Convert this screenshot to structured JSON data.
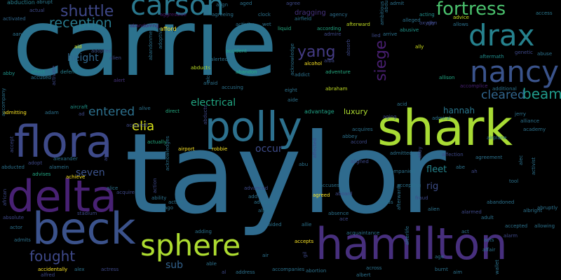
{
  "words": [
    {
      "text": "carrie",
      "color": "#2c728e"
    },
    {
      "text": "taylor",
      "color": "#2f6b8e"
    },
    {
      "text": "shark",
      "color": "#a8db34"
    },
    {
      "text": "hamilton",
      "color": "#472f7d"
    },
    {
      "text": "polly",
      "color": "#2d718e"
    },
    {
      "text": "flora",
      "color": "#3e4a89"
    },
    {
      "text": "delta",
      "color": "#482173"
    },
    {
      "text": "beck",
      "color": "#3b528b"
    },
    {
      "text": "sphere",
      "color": "#addc30"
    },
    {
      "text": "drax",
      "color": "#26828e"
    },
    {
      "text": "nancy",
      "color": "#3a538b"
    },
    {
      "text": "carson",
      "color": "#2a788e"
    },
    {
      "text": "fortress",
      "color": "#4ac16d"
    },
    {
      "text": "shuttle",
      "color": "#3f4889"
    },
    {
      "text": "reception",
      "color": "#297b8e"
    },
    {
      "text": "yang",
      "color": "#443b84"
    },
    {
      "text": "siege",
      "color": "#481f70"
    },
    {
      "text": "beam",
      "color": "#1f9a8a"
    },
    {
      "text": "cleared",
      "color": "#31668e"
    },
    {
      "text": "fought",
      "color": "#3e4989"
    },
    {
      "text": "elia",
      "color": "#d8e219"
    },
    {
      "text": "entered",
      "color": "#2d718e"
    },
    {
      "text": "electrical",
      "color": "#22a884"
    },
    {
      "text": "height",
      "color": "#31688e"
    },
    {
      "text": "seven",
      "color": "#3b528b"
    },
    {
      "text": "occur",
      "color": "#3e4c8a"
    },
    {
      "text": "hannah",
      "color": "#2a778e"
    },
    {
      "text": "sub",
      "color": "#33628d"
    },
    {
      "text": "fleet",
      "color": "#25858e"
    },
    {
      "text": "rig",
      "color": "#3d4e8a"
    },
    {
      "text": "luxury",
      "color": "#addc30"
    },
    {
      "text": "advantage",
      "color": "#20a386"
    },
    {
      "text": "dragging",
      "color": "#46327e"
    },
    {
      "text": "abduction",
      "color": "#277f8e"
    },
    {
      "text": "abandoning",
      "color": "#481f70"
    },
    {
      "text": "activated",
      "color": "#31688e"
    },
    {
      "text": "aggressive",
      "color": "#481668"
    },
    {
      "text": "afford",
      "color": "#fde725"
    },
    {
      "text": "airfield",
      "color": "#2c728e"
    },
    {
      "text": "liquid",
      "color": "#25ac82"
    },
    {
      "text": "abrupt",
      "color": "#2a788e"
    },
    {
      "text": "according",
      "color": "#22a884"
    },
    {
      "text": "agency",
      "color": "#2e6f8e"
    },
    {
      "text": "afterward",
      "color": "#c2df23"
    },
    {
      "text": "abusive",
      "color": "#1f958b"
    },
    {
      "text": "allows",
      "color": "#2c728e"
    },
    {
      "text": "acting",
      "color": "#21908d"
    },
    {
      "text": "advice",
      "color": "#c5e021"
    },
    {
      "text": "access",
      "color": "#2a788e"
    },
    {
      "text": "ally",
      "color": "#d0e11c"
    },
    {
      "text": "abuse",
      "color": "#2c728e"
    },
    {
      "text": "aftermath",
      "color": "#218e8d"
    },
    {
      "text": "allison",
      "color": "#22a884"
    },
    {
      "text": "accomplice",
      "color": "#482173"
    },
    {
      "text": "additional",
      "color": "#2c728e"
    },
    {
      "text": "abby",
      "color": "#1f958b"
    },
    {
      "text": "aid",
      "color": "#dde318"
    },
    {
      "text": "adopted",
      "color": "#3b528b"
    },
    {
      "text": "alien",
      "color": "#3e4989"
    },
    {
      "text": "affect",
      "color": "#1f958b"
    },
    {
      "text": "defend",
      "color": "#277f8e"
    },
    {
      "text": "accused",
      "color": "#2c728e"
    },
    {
      "text": "alert",
      "color": "#46327e"
    },
    {
      "text": "abducts",
      "color": "#bddf26"
    },
    {
      "text": "alerted",
      "color": "#2c728e"
    },
    {
      "text": "abandon",
      "color": "#25ac82"
    },
    {
      "text": "accident",
      "color": "#22a884"
    },
    {
      "text": "afraid",
      "color": "#2c728e"
    },
    {
      "text": "accusing",
      "color": "#2c728e"
    },
    {
      "text": "alcohol",
      "color": "#fde725"
    },
    {
      "text": "addict",
      "color": "#2c728e"
    },
    {
      "text": "adventure",
      "color": "#25ac82"
    },
    {
      "text": "abraham",
      "color": "#c2df23"
    },
    {
      "text": "eight",
      "color": "#2c728e"
    },
    {
      "text": "aide",
      "color": "#2c728e"
    },
    {
      "text": "adam",
      "color": "#2c728e"
    },
    {
      "text": "aircraft",
      "color": "#1f958b"
    },
    {
      "text": "alive",
      "color": "#2c728e"
    },
    {
      "text": "direct",
      "color": "#25ac82"
    },
    {
      "text": "admitting",
      "color": "#fde725"
    },
    {
      "text": "ad",
      "color": "#3e4989"
    },
    {
      "text": "accompany",
      "color": "#2c728e"
    },
    {
      "text": "airport",
      "color": "#fde725"
    },
    {
      "text": "robbie",
      "color": "#fde725"
    },
    {
      "text": "actually",
      "color": "#25ac82"
    },
    {
      "text": "alexander",
      "color": "#2c728e"
    },
    {
      "text": "alamein",
      "color": "#2c728e"
    },
    {
      "text": "advises",
      "color": "#22a884"
    },
    {
      "text": "achieve",
      "color": "#fde725"
    },
    {
      "text": "abducted",
      "color": "#2c728e"
    },
    {
      "text": "alice",
      "color": "#2c728e"
    },
    {
      "text": "acquire",
      "color": "#3e4989"
    },
    {
      "text": "ability",
      "color": "#2c728e"
    },
    {
      "text": "active",
      "color": "#2c728e"
    },
    {
      "text": "ago",
      "color": "#2c728e"
    },
    {
      "text": "advanced",
      "color": "#3e4989"
    },
    {
      "text": "add",
      "color": "#2c728e"
    },
    {
      "text": "advance",
      "color": "#2c728e"
    },
    {
      "text": "actor",
      "color": "#2c728e"
    },
    {
      "text": "admits",
      "color": "#2c728e"
    },
    {
      "text": "stadium",
      "color": "#3e4989"
    },
    {
      "text": "accidentally",
      "color": "#fde725"
    },
    {
      "text": "alex",
      "color": "#2c728e"
    },
    {
      "text": "actress",
      "color": "#3e4989"
    },
    {
      "text": "alfred",
      "color": "#3e4989"
    },
    {
      "text": "adding",
      "color": "#2c728e"
    },
    {
      "text": "able",
      "color": "#2c728e"
    },
    {
      "text": "al",
      "color": "#3e4989"
    },
    {
      "text": "address",
      "color": "#2c728e"
    },
    {
      "text": "aided",
      "color": "#2c728e"
    },
    {
      "text": "allie",
      "color": "#2c728e"
    },
    {
      "text": "accepts",
      "color": "#fde725"
    },
    {
      "text": "accompanies",
      "color": "#2c728e"
    },
    {
      "text": "abortion",
      "color": "#2c728e"
    },
    {
      "text": "acquaintance",
      "color": "#2c728e"
    },
    {
      "text": "absence",
      "color": "#2c728e"
    },
    {
      "text": "agreed",
      "color": "#fde725"
    },
    {
      "text": "accuses",
      "color": "#2c728e"
    },
    {
      "text": "aboard",
      "color": "#3e4989"
    },
    {
      "text": "accompanied",
      "color": "#2c728e"
    },
    {
      "text": "admitted",
      "color": "#2c728e"
    },
    {
      "text": "affection",
      "color": "#3e4989"
    },
    {
      "text": "agreement",
      "color": "#2c728e"
    },
    {
      "text": "abe",
      "color": "#2c728e"
    },
    {
      "text": "tool",
      "color": "#2c728e"
    },
    {
      "text": "alien",
      "color": "#2c728e"
    },
    {
      "text": "accepting",
      "color": "#2c728e"
    },
    {
      "text": "jonas",
      "color": "#2c728e"
    },
    {
      "text": "alarmed",
      "color": "#3e4989"
    },
    {
      "text": "abandoned",
      "color": "#2c728e"
    },
    {
      "text": "adult",
      "color": "#2c728e"
    },
    {
      "text": "act",
      "color": "#2c728e"
    },
    {
      "text": "affair",
      "color": "#2c728e"
    },
    {
      "text": "age",
      "color": "#2c728e"
    },
    {
      "text": "aim",
      "color": "#2c728e"
    },
    {
      "text": "burnt",
      "color": "#2c728e"
    },
    {
      "text": "albert",
      "color": "#2c728e"
    },
    {
      "text": "across",
      "color": "#2c728e"
    },
    {
      "text": "abruptly",
      "color": "#2c728e"
    },
    {
      "text": "albright",
      "color": "#2c728e"
    },
    {
      "text": "accepted",
      "color": "#2c728e"
    },
    {
      "text": "allowing",
      "color": "#2c728e"
    },
    {
      "text": "admiral",
      "color": "#2c728e"
    },
    {
      "text": "acid",
      "color": "#2c728e"
    },
    {
      "text": "abbey",
      "color": "#2c728e"
    },
    {
      "text": "accord",
      "color": "#3e4989"
    },
    {
      "text": "acquires",
      "color": "#2c728e"
    },
    {
      "text": "jerry",
      "color": "#2c728e"
    },
    {
      "text": "alliance",
      "color": "#2c728e"
    },
    {
      "text": "academy",
      "color": "#2c728e"
    },
    {
      "text": "airplane",
      "color": "#2c728e"
    },
    {
      "text": "activist",
      "color": "#2c728e"
    },
    {
      "text": "alec",
      "color": "#2c728e"
    },
    {
      "text": "aligned",
      "color": "#3e4989"
    },
    {
      "text": "agreeing",
      "color": "#2c728e"
    },
    {
      "text": "activity",
      "color": "#2c728e"
    },
    {
      "text": "wet",
      "color": "#2c728e"
    },
    {
      "text": "clock",
      "color": "#2c728e"
    },
    {
      "text": "aged",
      "color": "#2c728e"
    },
    {
      "text": "align",
      "color": "#2c728e"
    },
    {
      "text": "admit",
      "color": "#2c728e"
    },
    {
      "text": "aang",
      "color": "#2c728e"
    },
    {
      "text": "admire",
      "color": "#3e4989"
    },
    {
      "text": "abu",
      "color": "#2c728e"
    },
    {
      "text": "abandonment",
      "color": "#2c728e"
    },
    {
      "text": "arrive",
      "color": "#2c728e"
    },
    {
      "text": "ambitious",
      "color": "#2c728e"
    },
    {
      "text": "abducting",
      "color": "#2c728e"
    },
    {
      "text": "affected",
      "color": "#3e4989"
    },
    {
      "text": "alleged",
      "color": "#2c728e"
    },
    {
      "text": "african",
      "color": "#3e4989"
    },
    {
      "text": "accept",
      "color": "#3e4989"
    },
    {
      "text": "adopt",
      "color": "#3e4989"
    },
    {
      "text": "absolute",
      "color": "#3e4989"
    },
    {
      "text": "acquired",
      "color": "#3e4989"
    },
    {
      "text": "actual",
      "color": "#3e4989"
    },
    {
      "text": "allow",
      "color": "#2c728e"
    },
    {
      "text": "air",
      "color": "#2c728e"
    },
    {
      "text": "agent",
      "color": "#3e4989"
    },
    {
      "text": "action",
      "color": "#3e4989"
    },
    {
      "text": "abducts",
      "color": "#3e4989"
    },
    {
      "text": "gil",
      "color": "#3e4989"
    },
    {
      "text": "ace",
      "color": "#3e4989"
    },
    {
      "text": "ah",
      "color": "#3e4989"
    },
    {
      "text": "alba",
      "color": "#3e4989"
    },
    {
      "text": "afterlife",
      "color": "#2c728e"
    },
    {
      "text": "afterwards",
      "color": "#2c728e"
    },
    {
      "text": "alloy",
      "color": "#3e4989"
    },
    {
      "text": "aging",
      "color": "#3e4989"
    },
    {
      "text": "acknowledge",
      "color": "#2c728e"
    },
    {
      "text": "adoptive",
      "color": "#2c728e"
    },
    {
      "text": "acknowledges",
      "color": "#2c728e"
    },
    {
      "text": "alcoholic",
      "color": "#2c728e"
    },
    {
      "text": "activate",
      "color": "#3e4989"
    },
    {
      "text": "absorb",
      "color": "#3e4989"
    },
    {
      "text": "ally",
      "color": "#3e4989"
    },
    {
      "text": "fraud",
      "color": "#3e4989"
    },
    {
      "text": "oxygen",
      "color": "#3e4989"
    },
    {
      "text": "genetic",
      "color": "#3e4989"
    },
    {
      "text": "wallet",
      "color": "#2c728e"
    },
    {
      "text": "acts",
      "color": "#2c728e"
    },
    {
      "text": "alarm",
      "color": "#3e4989"
    },
    {
      "text": "lied",
      "color": "#3e4989"
    },
    {
      "text": "agree",
      "color": "#3e4989"
    }
  ]
}
